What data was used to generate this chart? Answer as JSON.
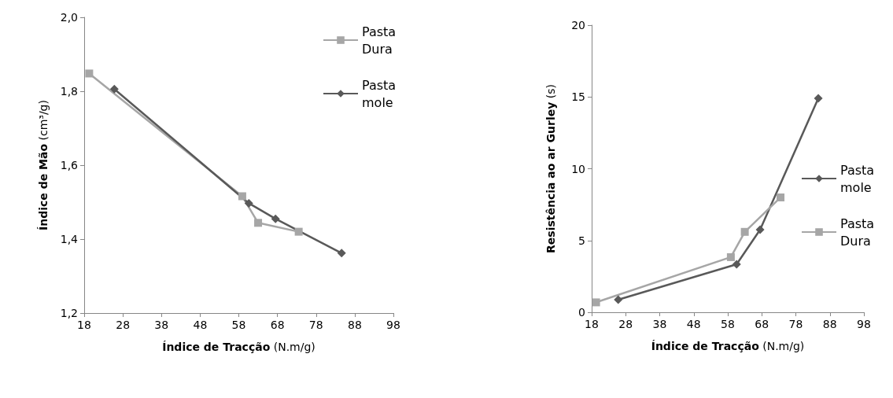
{
  "chart_data": [
    {
      "type": "line",
      "xlabel": "Índice de Tracção (N.m/g)",
      "ylabel": "Índice de Mão (cm³/g)",
      "xlim": [
        18,
        98
      ],
      "xticks": [
        18,
        28,
        38,
        48,
        58,
        68,
        78,
        88,
        98
      ],
      "ylim": [
        1.2,
        2.0
      ],
      "yticks": [
        {
          "value": 1.2,
          "label": "1,2"
        },
        {
          "value": 1.4,
          "label": "1,4"
        },
        {
          "value": 1.6,
          "label": "1,6"
        },
        {
          "value": 1.8,
          "label": "1,8"
        },
        {
          "value": 2.0,
          "label": "2,0"
        }
      ],
      "grid": false,
      "legend": "top right",
      "series": [
        {
          "name": "Pasta Dura",
          "color": "#a6a6a6",
          "marker": "square",
          "x": [
            19.3,
            58.9,
            63.0,
            73.5
          ],
          "values": [
            1.848,
            1.516,
            1.444,
            1.42
          ]
        },
        {
          "name": "Pasta mole",
          "color": "#595959",
          "marker": "diamond",
          "x": [
            25.8,
            60.6,
            67.5,
            84.6
          ],
          "values": [
            1.806,
            1.497,
            1.455,
            1.362
          ]
        }
      ]
    },
    {
      "type": "line",
      "xlabel": "Índice de Tracção (N.m/g)",
      "ylabel": "Resistência ao ar Gurley (s)",
      "xlim": [
        18,
        98
      ],
      "xticks": [
        18,
        28,
        38,
        48,
        58,
        68,
        78,
        88,
        98
      ],
      "ylim": [
        0,
        20
      ],
      "yticks": [
        0,
        5,
        10,
        15,
        20
      ],
      "grid": false,
      "legend": "right",
      "series": [
        {
          "name": "Pasta mole",
          "color": "#595959",
          "marker": "diamond",
          "x": [
            25.8,
            60.6,
            67.5,
            84.6
          ],
          "values": [
            0.88,
            3.34,
            5.75,
            14.9
          ]
        },
        {
          "name": "Pasta Dura",
          "color": "#a6a6a6",
          "marker": "square",
          "x": [
            19.3,
            58.9,
            63.0,
            73.5
          ],
          "values": [
            0.69,
            3.84,
            5.6,
            8.0
          ]
        }
      ]
    }
  ]
}
